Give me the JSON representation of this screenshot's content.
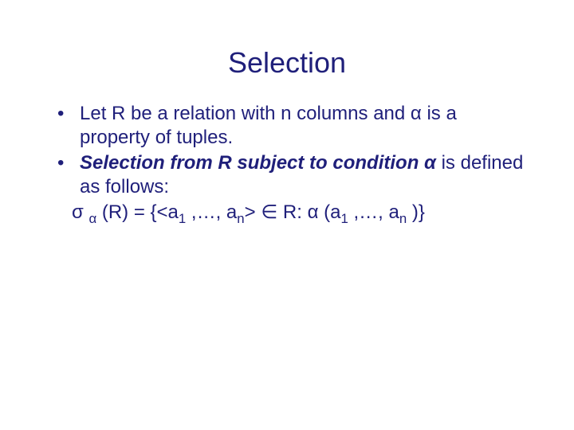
{
  "colors": {
    "text": "#1f1f7a",
    "background": "#ffffff"
  },
  "typography": {
    "title_fontsize": 36,
    "body_fontsize": 24,
    "sub_fontsize_ratio": 0.7,
    "font_family": "Verdana"
  },
  "slide": {
    "title": "Selection",
    "bullets": [
      {
        "marker": "•",
        "parts": {
          "p1": "Let R be a relation with n columns and ",
          "alpha": "α",
          "p2": " is a property of tuples."
        }
      },
      {
        "marker": "•",
        "parts": {
          "bold_a": "Selection from R subject to condition ",
          "bold_alpha": "α",
          "tail": " is defined as follows:"
        }
      }
    ],
    "formula": {
      "sigma": "σ ",
      "sub_alpha": "α",
      "eq_open": " (R) = {<a",
      "sub1a": "1",
      "mid1": " ,…, a",
      "subn_a": "n",
      "close_angle": "> ",
      "in": "∈",
      "r_colon": " R: ",
      "alpha2": "α",
      "open_paren": " (a",
      "sub1b": "1",
      "mid2": " ,…, a",
      "subn_b": "n",
      "end": " )}"
    }
  }
}
